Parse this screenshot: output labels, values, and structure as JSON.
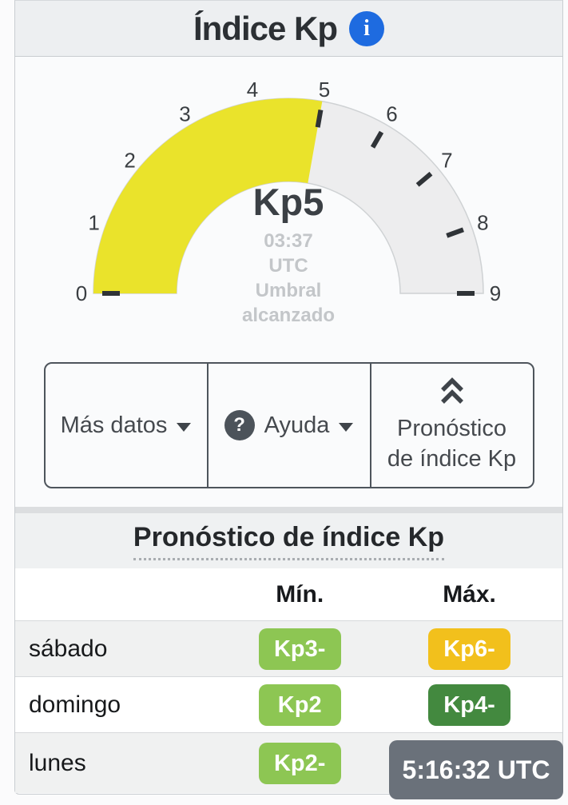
{
  "header": {
    "title": "Índice Kp"
  },
  "gauge": {
    "value_label": "Kp5",
    "value": 5,
    "min": 0,
    "max": 9,
    "tick_labels": [
      "0",
      "1",
      "2",
      "3",
      "4",
      "5",
      "6",
      "7",
      "8",
      "9"
    ],
    "visible_tick_marks": [
      0,
      5,
      6,
      7,
      8,
      9
    ],
    "caption_lines": [
      "03:37",
      "UTC",
      "Umbral",
      "alcanzado"
    ],
    "fill_color": "#eae32b",
    "track_color": "#ededee",
    "track_border_color": "#cfd2d4",
    "tick_color": "#2f3337"
  },
  "toolbar": {
    "more_data": "Más datos",
    "help": "Ayuda",
    "help_icon": "?",
    "forecast_line1": "Pronóstico",
    "forecast_line2": "de índice Kp"
  },
  "forecast": {
    "title": "Pronóstico de índice Kp",
    "col_min": "Mín.",
    "col_max": "Máx.",
    "rows": [
      {
        "day": "sábado",
        "min_label": "Kp3-",
        "min_color": "#8dc653",
        "max_label": "Kp6-",
        "max_color": "#f2c01c"
      },
      {
        "day": "domingo",
        "min_label": "Kp2",
        "min_color": "#8dc653",
        "max_label": "Kp4-",
        "max_color": "#43893f"
      },
      {
        "day": "lunes",
        "min_label": "Kp2-",
        "min_color": "#8dc653",
        "max_label": "",
        "max_color": ""
      }
    ]
  },
  "clock": {
    "time": "5:16:32 UTC"
  }
}
